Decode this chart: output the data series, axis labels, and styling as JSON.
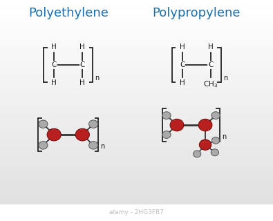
{
  "title_left": "Polyethylene",
  "title_right": "Polypropylene",
  "title_color": "#1a6fad",
  "bg_color": "#f0f2f5",
  "bracket_color": "#111111",
  "bond_color": "#111111",
  "text_color": "#111111",
  "carbon_color": "#b82020",
  "hydrogen_color": "#aaaaaa",
  "title_fontsize": 13,
  "label_fontsize": 7.5,
  "watermark": "alamy - 2HG3FB7",
  "watermark_bg": "#111111",
  "watermark_color": "#bbbbbb"
}
